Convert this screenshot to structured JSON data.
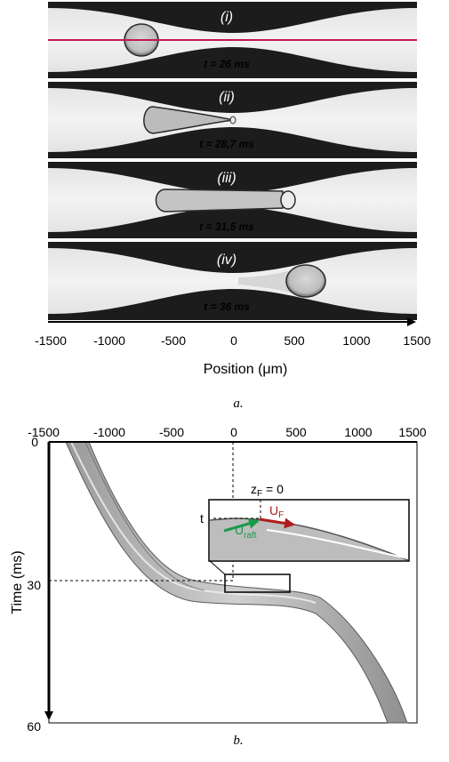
{
  "figure_a": {
    "panels": [
      {
        "label": "(i)",
        "time": "t = 26 ms"
      },
      {
        "label": "(ii)",
        "time": "t = 28,7 ms"
      },
      {
        "label": "(iii)",
        "time": "t = 31,5 ms"
      },
      {
        "label": "(iv)",
        "time": "t = 36 ms"
      }
    ],
    "x_ticks": [
      "-1500",
      "-1000",
      "-500",
      "0",
      "500",
      "1000",
      "1500"
    ],
    "x_label": "Position (μm)",
    "caption": "a."
  },
  "figure_b": {
    "x_ticks": [
      "-1500",
      "-1000",
      "-500",
      "0",
      "500",
      "1000",
      "1500"
    ],
    "y_ticks": [
      "0",
      "30",
      "60"
    ],
    "y_label": "Time (ms)",
    "inset": {
      "zf": "z",
      "zf_sub": "F",
      "zf_rest": " = 0",
      "t_label": "t",
      "uf": "U",
      "uf_sub": "F",
      "uraft": "U",
      "uraft_sub": "raft"
    },
    "caption": "b.",
    "colors": {
      "uf_arrow": "#b01c1c",
      "uraft_arrow": "#1a9a4a",
      "cut_line": "#c0185a"
    }
  }
}
